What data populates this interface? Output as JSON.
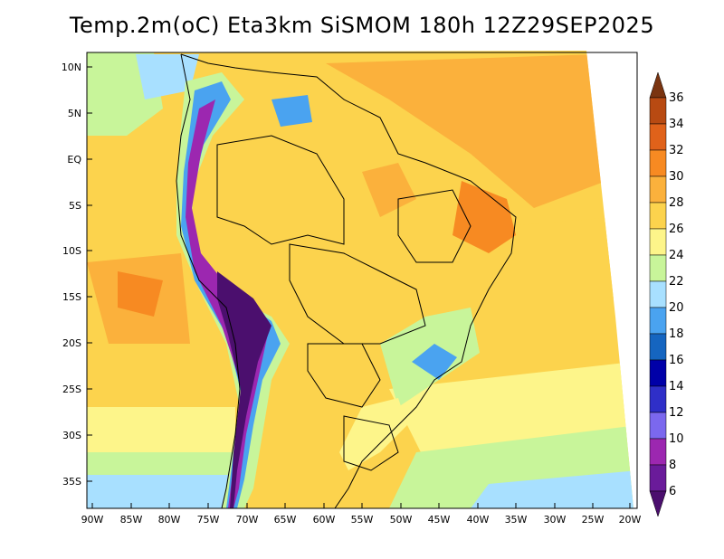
{
  "title": "Temp.2m(oC) Eta3km SiSMOM 180h 12Z29SEP2025",
  "map": {
    "variable": "2 m temperature",
    "units": "oC",
    "lat_ticks": [
      "10N",
      "5N",
      "EQ",
      "5S",
      "10S",
      "15S",
      "20S",
      "25S",
      "30S",
      "35S"
    ],
    "lon_ticks": [
      "90W",
      "85W",
      "80W",
      "75W",
      "70W",
      "65W",
      "60W",
      "55W",
      "50W",
      "45W",
      "40W",
      "35W",
      "30W",
      "25W",
      "20W"
    ]
  },
  "colorbar": {
    "labels": [
      "36",
      "34",
      "32",
      "30",
      "28",
      "26",
      "24",
      "22",
      "20",
      "18",
      "16",
      "14",
      "12",
      "10",
      "8",
      "6"
    ],
    "colors": {
      "below_6": "#4b0f6e",
      "6_8": "#6a1b9a",
      "8_10": "#9c27b0",
      "10_12": "#7b68ee",
      "12_14": "#2f2fc8",
      "14_16": "#0000a8",
      "16_18": "#1565c0",
      "18_20": "#4aa3f0",
      "20_22": "#a8e0ff",
      "22_24": "#c8f59a",
      "24_26": "#fdf58a",
      "26_28": "#fcd34d",
      "28_30": "#fbb13c",
      "30_32": "#f78a22",
      "32_34": "#e0621a",
      "34_36": "#b84a12",
      "above_36": "#7a3410"
    }
  }
}
